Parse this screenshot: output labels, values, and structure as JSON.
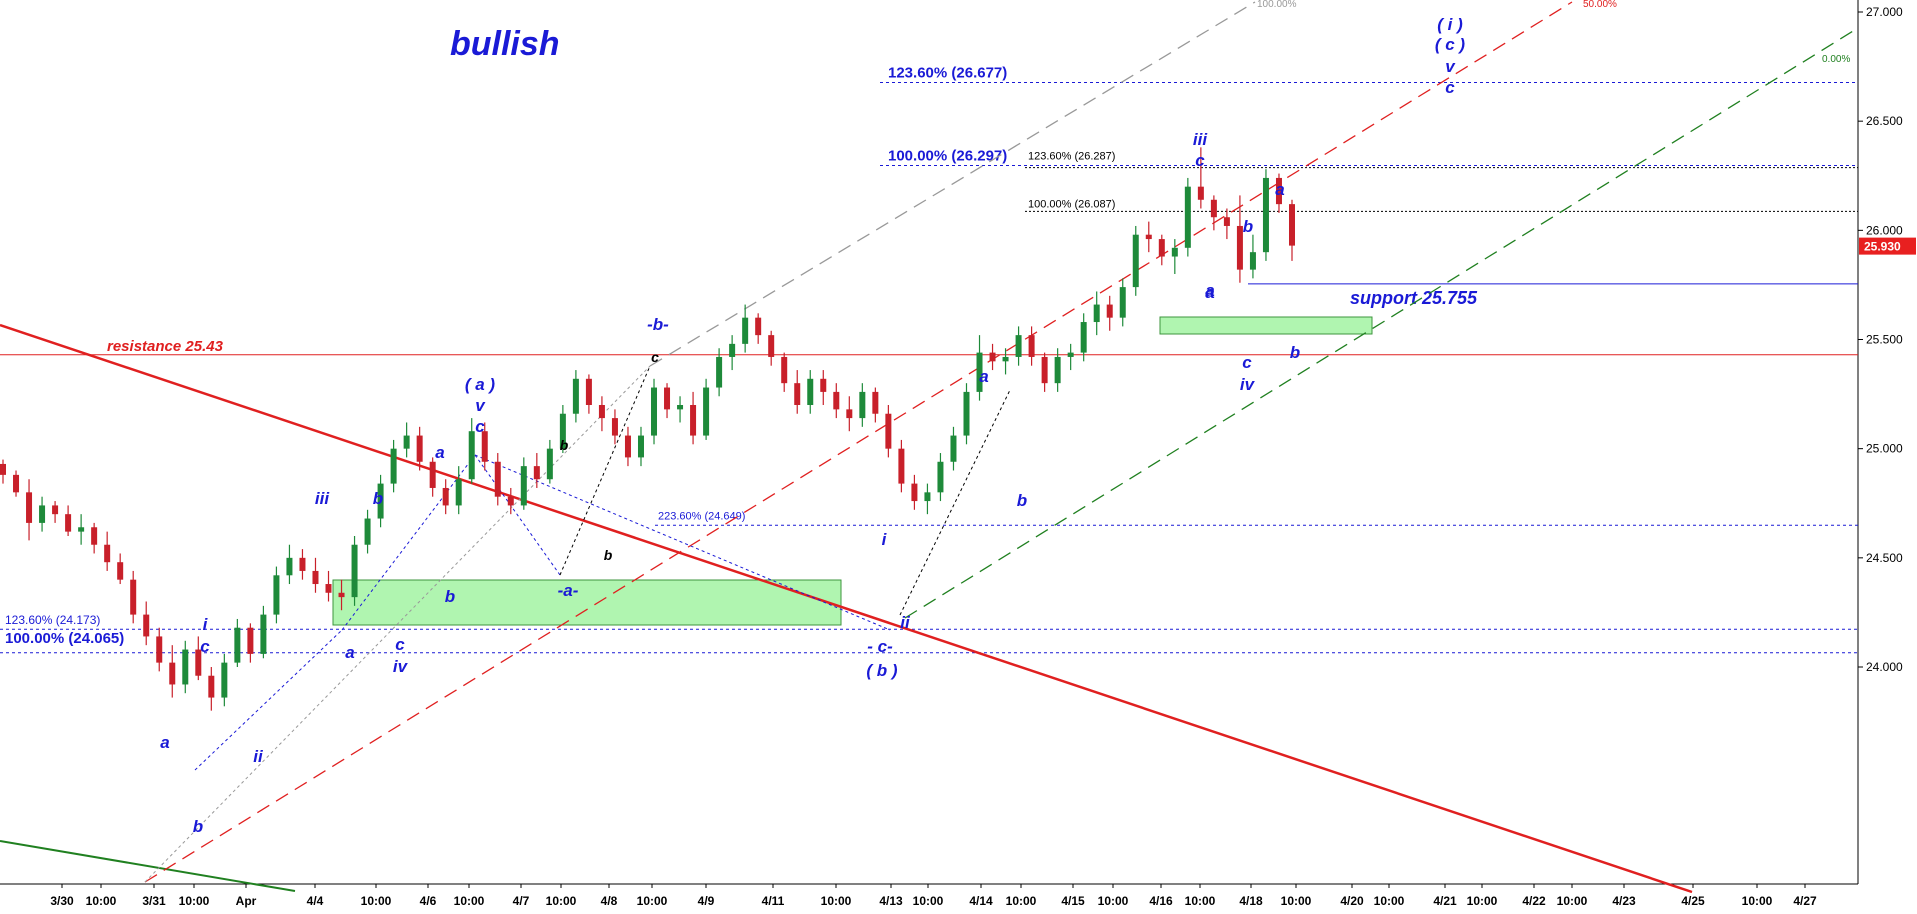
{
  "chart_data": {
    "type": "candlestick",
    "title": "bullish",
    "price_axis": {
      "min": 23.75,
      "max": 27.05,
      "ticks": [
        "27.000",
        "26.500",
        "26.000",
        "25.500",
        "25.000",
        "24.500",
        "24.000"
      ]
    },
    "last_price": "25.930",
    "x_tick_labels": [
      "3/30",
      "10:00",
      "3/31",
      "10:00",
      "Apr",
      "4/4",
      "10:00",
      "4/6",
      "10:00",
      "4/7",
      "10:00",
      "4/8",
      "10:00",
      "4/9",
      "4/11",
      "10:00",
      "4/13",
      "10:00",
      "4/14",
      "10:00",
      "4/15",
      "10:00",
      "4/16",
      "10:00",
      "4/18",
      "10:00",
      "4/20",
      "10:00",
      "4/21",
      "10:00",
      "4/22",
      "10:00",
      "4/23",
      "4/25",
      "10:00",
      "4/27"
    ],
    "horizontal_levels": [
      {
        "name": "fib-123-26677",
        "label": "123.60% (26.677)",
        "value": 26.677,
        "color": "#1a1ad6"
      },
      {
        "name": "fib-100-26297",
        "label": "100.00% (26.297)",
        "value": 26.297,
        "color": "#1a1ad6"
      },
      {
        "name": "fib-123-26287",
        "label": "123.60% (26.287)",
        "value": 26.287,
        "color": "#000000"
      },
      {
        "name": "fib-100-26087",
        "label": "100.00% (26.087)",
        "value": 26.087,
        "color": "#000000"
      },
      {
        "name": "resistance",
        "label": "resistance 25.43",
        "value": 25.43,
        "color": "#e02020"
      },
      {
        "name": "support",
        "label": "support 25.755",
        "value": 25.755,
        "color": "#1a1ad6"
      },
      {
        "name": "fib-223-24649",
        "label": "223.60% (24.649)",
        "value": 24.649,
        "color": "#1a1ad6"
      },
      {
        "name": "fib-123-24173",
        "label": "123.60% (24.173)",
        "value": 24.173,
        "color": "#1a1ad6"
      },
      {
        "name": "fib-100-24065",
        "label": "100.00% (24.065)",
        "value": 24.065,
        "color": "#1a1ad6"
      }
    ],
    "channel_labels": [
      "100.00%",
      "50.00%",
      "0.00%"
    ],
    "wave_labels": [
      "( i )",
      "( c )",
      "v",
      "c",
      "iii",
      "c",
      "a",
      "b",
      "a",
      "c",
      "iv",
      "b",
      "-b-",
      "c",
      "( a )",
      "v",
      "c",
      "a",
      "iii",
      "b",
      "b",
      "c",
      "iv",
      "a",
      "i",
      "c",
      "a",
      "b",
      "ii",
      "-a-",
      "a",
      "b",
      "b",
      "b",
      "a",
      "i",
      "ii",
      "- c-",
      "( b )"
    ],
    "candles": [
      [
        24.93,
        24.95,
        24.84,
        24.88
      ],
      [
        24.88,
        24.9,
        24.78,
        24.8
      ],
      [
        24.8,
        24.86,
        24.58,
        24.66
      ],
      [
        24.66,
        24.78,
        24.62,
        24.74
      ],
      [
        24.74,
        24.76,
        24.66,
        24.7
      ],
      [
        24.7,
        24.74,
        24.6,
        24.62
      ],
      [
        24.62,
        24.7,
        24.56,
        24.64
      ],
      [
        24.64,
        24.66,
        24.52,
        24.56
      ],
      [
        24.56,
        24.62,
        24.44,
        24.48
      ],
      [
        24.48,
        24.52,
        24.38,
        24.4
      ],
      [
        24.4,
        24.44,
        24.2,
        24.24
      ],
      [
        24.24,
        24.3,
        24.1,
        24.14
      ],
      [
        24.14,
        24.18,
        23.98,
        24.02
      ],
      [
        24.02,
        24.1,
        23.86,
        23.92
      ],
      [
        23.92,
        24.12,
        23.88,
        24.08
      ],
      [
        24.08,
        24.14,
        23.94,
        23.96
      ],
      [
        23.96,
        24.0,
        23.8,
        23.86
      ],
      [
        23.86,
        24.06,
        23.82,
        24.02
      ],
      [
        24.02,
        24.22,
        24.0,
        24.18
      ],
      [
        24.18,
        24.2,
        24.02,
        24.06
      ],
      [
        24.06,
        24.28,
        24.04,
        24.24
      ],
      [
        24.24,
        24.46,
        24.2,
        24.42
      ],
      [
        24.42,
        24.56,
        24.38,
        24.5
      ],
      [
        24.5,
        24.54,
        24.4,
        24.44
      ],
      [
        24.44,
        24.5,
        24.34,
        24.38
      ],
      [
        24.38,
        24.44,
        24.3,
        24.34
      ],
      [
        24.34,
        24.4,
        24.26,
        24.32
      ],
      [
        24.32,
        24.6,
        24.28,
        24.56
      ],
      [
        24.56,
        24.72,
        24.52,
        24.68
      ],
      [
        24.68,
        24.88,
        24.64,
        24.84
      ],
      [
        24.84,
        25.04,
        24.8,
        25.0
      ],
      [
        25.0,
        25.12,
        24.96,
        25.06
      ],
      [
        25.06,
        25.1,
        24.9,
        24.94
      ],
      [
        24.94,
        24.96,
        24.78,
        24.82
      ],
      [
        24.82,
        24.86,
        24.7,
        24.74
      ],
      [
        24.74,
        24.92,
        24.7,
        24.86
      ],
      [
        24.86,
        25.14,
        24.84,
        25.08
      ],
      [
        25.08,
        25.12,
        24.9,
        24.94
      ],
      [
        24.94,
        24.98,
        24.74,
        24.78
      ],
      [
        24.78,
        24.82,
        24.7,
        24.74
      ],
      [
        24.74,
        24.96,
        24.72,
        24.92
      ],
      [
        24.92,
        24.98,
        24.82,
        24.86
      ],
      [
        24.86,
        25.04,
        24.84,
        25.0
      ],
      [
        25.0,
        25.2,
        24.98,
        25.16
      ],
      [
        25.16,
        25.36,
        25.12,
        25.32
      ],
      [
        25.32,
        25.34,
        25.16,
        25.2
      ],
      [
        25.2,
        25.24,
        25.08,
        25.14
      ],
      [
        25.14,
        25.18,
        25.02,
        25.06
      ],
      [
        25.06,
        25.1,
        24.92,
        24.96
      ],
      [
        24.96,
        25.1,
        24.92,
        25.06
      ],
      [
        25.06,
        25.32,
        25.02,
        25.28
      ],
      [
        25.28,
        25.3,
        25.14,
        25.18
      ],
      [
        25.18,
        25.24,
        25.12,
        25.2
      ],
      [
        25.2,
        25.26,
        25.02,
        25.06
      ],
      [
        25.06,
        25.32,
        25.04,
        25.28
      ],
      [
        25.28,
        25.46,
        25.24,
        25.42
      ],
      [
        25.42,
        25.52,
        25.36,
        25.48
      ],
      [
        25.48,
        25.66,
        25.44,
        25.6
      ],
      [
        25.6,
        25.62,
        25.48,
        25.52
      ],
      [
        25.52,
        25.54,
        25.38,
        25.42
      ],
      [
        25.42,
        25.44,
        25.26,
        25.3
      ],
      [
        25.3,
        25.36,
        25.16,
        25.2
      ],
      [
        25.2,
        25.36,
        25.16,
        25.32
      ],
      [
        25.32,
        25.36,
        25.2,
        25.26
      ],
      [
        25.26,
        25.3,
        25.14,
        25.18
      ],
      [
        25.18,
        25.24,
        25.08,
        25.14
      ],
      [
        25.14,
        25.3,
        25.1,
        25.26
      ],
      [
        25.26,
        25.28,
        25.12,
        25.16
      ],
      [
        25.16,
        25.2,
        24.96,
        25.0
      ],
      [
        25.0,
        25.04,
        24.8,
        24.84
      ],
      [
        24.84,
        24.88,
        24.72,
        24.76
      ],
      [
        24.76,
        24.84,
        24.7,
        24.8
      ],
      [
        24.8,
        24.98,
        24.76,
        24.94
      ],
      [
        24.94,
        25.1,
        24.9,
        25.06
      ],
      [
        25.06,
        25.3,
        25.02,
        25.26
      ],
      [
        25.26,
        25.52,
        25.22,
        25.44
      ],
      [
        25.44,
        25.48,
        25.36,
        25.4
      ],
      [
        25.4,
        25.46,
        25.34,
        25.42
      ],
      [
        25.42,
        25.56,
        25.38,
        25.52
      ],
      [
        25.52,
        25.56,
        25.38,
        25.42
      ],
      [
        25.42,
        25.44,
        25.26,
        25.3
      ],
      [
        25.3,
        25.46,
        25.26,
        25.42
      ],
      [
        25.42,
        25.48,
        25.36,
        25.44
      ],
      [
        25.44,
        25.62,
        25.4,
        25.58
      ],
      [
        25.58,
        25.72,
        25.52,
        25.66
      ],
      [
        25.66,
        25.7,
        25.54,
        25.6
      ],
      [
        25.6,
        25.78,
        25.56,
        25.74
      ],
      [
        25.74,
        26.02,
        25.7,
        25.98
      ],
      [
        25.98,
        26.04,
        25.9,
        25.96
      ],
      [
        25.96,
        25.98,
        25.84,
        25.88
      ],
      [
        25.88,
        25.96,
        25.8,
        25.92
      ],
      [
        25.92,
        26.24,
        25.88,
        26.2
      ],
      [
        26.2,
        26.38,
        26.1,
        26.14
      ],
      [
        26.14,
        26.16,
        26.0,
        26.06
      ],
      [
        26.06,
        26.1,
        25.96,
        26.02
      ],
      [
        26.02,
        26.16,
        25.76,
        25.82
      ],
      [
        25.82,
        25.98,
        25.78,
        25.9
      ],
      [
        25.9,
        26.28,
        25.86,
        26.24
      ],
      [
        26.24,
        26.26,
        26.08,
        26.12
      ],
      [
        26.12,
        26.14,
        25.86,
        25.93
      ]
    ]
  }
}
